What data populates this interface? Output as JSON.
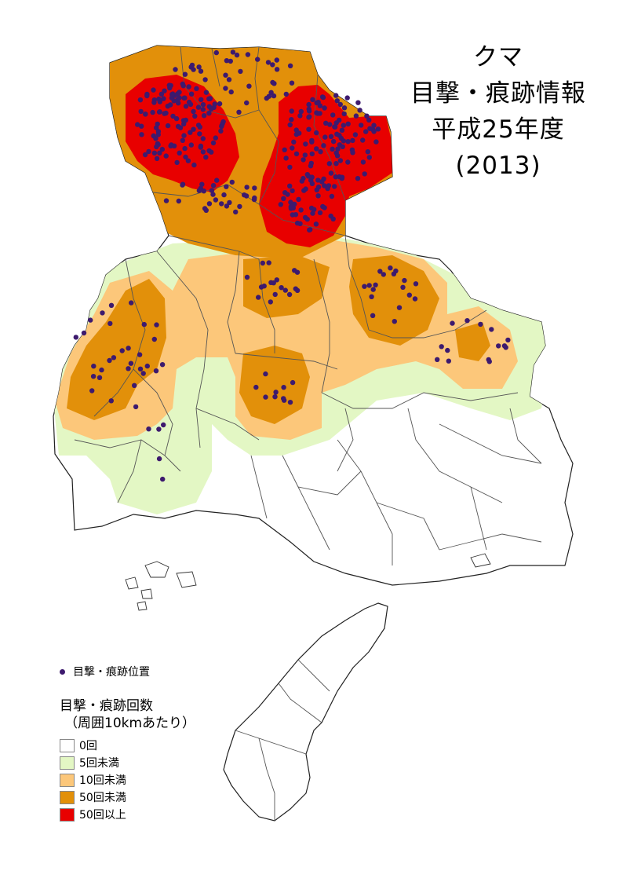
{
  "title": {
    "line1": "クマ",
    "line2": "目撃・痕跡情報",
    "line3": "平成25年度",
    "line4": "(2013)"
  },
  "legend_points": {
    "label": "目撃・痕跡位置",
    "color": "#3d1a6e"
  },
  "legend": {
    "title": "目撃・痕跡回数",
    "subtitle": "（周囲10kmあたり）",
    "items": [
      {
        "label": "0回",
        "color": "#ffffff"
      },
      {
        "label": "5回未満",
        "color": "#e3f7c4"
      },
      {
        "label": "10回未満",
        "color": "#fcc77a"
      },
      {
        "label": "50回未満",
        "color": "#e2900a"
      },
      {
        "label": "50回以上",
        "color": "#e80000"
      }
    ]
  }
}
